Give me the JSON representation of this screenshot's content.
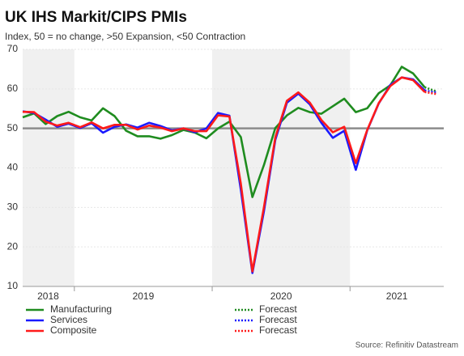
{
  "chart_data": {
    "type": "line",
    "title": "UK IHS Markit/CIPS PMIs",
    "subtitle": "Index, 50 = no change, >50 Expansion, <50 Contraction",
    "source": "Source: Refinitiv Datastream",
    "x": [
      2018.625,
      2018.708,
      2018.792,
      2018.875,
      2018.958,
      2019.042,
      2019.125,
      2019.208,
      2019.292,
      2019.375,
      2019.458,
      2019.542,
      2019.625,
      2019.708,
      2019.792,
      2019.875,
      2019.958,
      2020.042,
      2020.125,
      2020.208,
      2020.292,
      2020.375,
      2020.458,
      2020.542,
      2020.625,
      2020.708,
      2020.792,
      2020.875,
      2020.958,
      2021.042,
      2021.125,
      2021.208,
      2021.292,
      2021.375,
      2021.458,
      2021.542
    ],
    "series": [
      {
        "name": "Manufacturing",
        "color": "#1f8c1f",
        "values": [
          52.8,
          53.8,
          51.1,
          53.1,
          54.2,
          52.8,
          52.0,
          55.1,
          53.1,
          49.4,
          48.0,
          48.0,
          47.4,
          48.3,
          49.6,
          48.9,
          47.5,
          50.0,
          51.7,
          47.8,
          32.6,
          40.7,
          50.1,
          53.3,
          55.2,
          54.1,
          53.7,
          55.6,
          57.5,
          54.1,
          55.1,
          58.9,
          60.9,
          65.6,
          63.9,
          60.4
        ],
        "forecast": {
          "name": "Forecast",
          "x": [
            2021.542,
            2021.625
          ],
          "values": [
            60.4,
            59.4
          ]
        }
      },
      {
        "name": "Services",
        "color": "#1a1aff",
        "values": [
          54.3,
          53.9,
          52.2,
          50.4,
          51.2,
          50.1,
          51.3,
          48.9,
          50.4,
          51.0,
          50.2,
          51.4,
          50.6,
          49.5,
          50.0,
          49.0,
          50.0,
          53.9,
          53.2,
          34.5,
          13.4,
          29.0,
          47.1,
          56.5,
          58.8,
          56.1,
          51.4,
          47.6,
          49.4,
          39.5,
          49.5,
          56.3,
          61.0,
          62.9,
          62.4,
          59.6
        ],
        "forecast": {
          "name": "Forecast",
          "x": [
            2021.542,
            2021.625
          ],
          "values": [
            59.6,
            59.1
          ]
        }
      },
      {
        "name": "Composite",
        "color": "#ff1a1a",
        "values": [
          54.2,
          54.1,
          51.7,
          50.7,
          51.4,
          50.3,
          51.5,
          50.0,
          50.9,
          50.9,
          49.7,
          50.7,
          50.2,
          49.3,
          50.0,
          49.3,
          49.3,
          53.3,
          53.0,
          36.0,
          13.8,
          30.0,
          47.7,
          57.0,
          59.1,
          56.5,
          52.1,
          49.0,
          50.4,
          41.2,
          49.6,
          56.4,
          60.7,
          62.9,
          62.2,
          59.2
        ],
        "forecast": {
          "name": "Forecast",
          "x": [
            2021.542,
            2021.625
          ],
          "values": [
            59.2,
            58.7
          ]
        }
      }
    ],
    "xlim": [
      2018.625,
      2021.68
    ],
    "xticks": [
      {
        "value": 2018.81,
        "label": "2018"
      },
      {
        "value": 2019.5,
        "label": "2019"
      },
      {
        "value": 2020.5,
        "label": "2020"
      },
      {
        "value": 2021.34,
        "label": "2021"
      }
    ],
    "shaded_spans": [
      [
        2018.625,
        2019
      ],
      [
        2020,
        2021
      ]
    ],
    "ylim": [
      10,
      70
    ],
    "yticks": [
      10,
      20,
      30,
      40,
      50,
      60,
      70
    ],
    "reference_line": {
      "value": 50,
      "color": "#8c8c8c"
    },
    "grid": true
  }
}
